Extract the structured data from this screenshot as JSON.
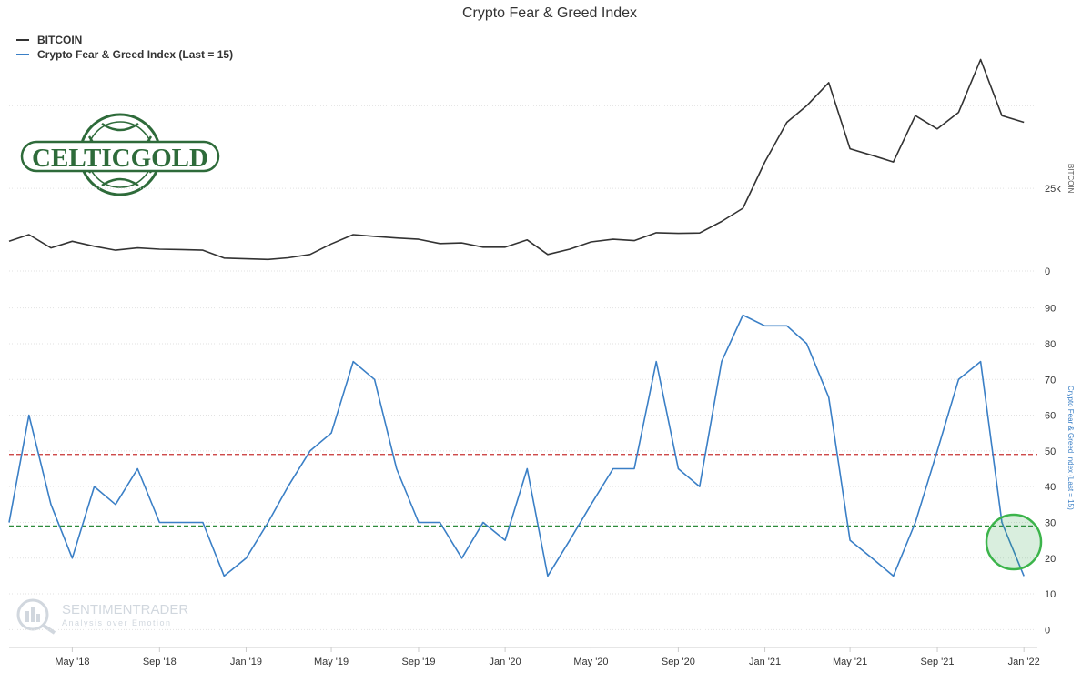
{
  "title": "Crypto Fear & Greed Index",
  "legend": [
    {
      "label": "BITCOIN",
      "color": "#333333"
    },
    {
      "label": "Crypto Fear & Greed Index (Last = 15)",
      "color": "#3a7fc6"
    }
  ],
  "logo": {
    "text": "CELTICGOLD"
  },
  "watermark": {
    "name": "SENTIMENTRADER",
    "tagline": "Analysis over Emotion"
  },
  "chart_data": [
    {
      "type": "line",
      "name": "BITCOIN",
      "ylabel": "BITCOIN",
      "ylim": [
        0,
        60000
      ],
      "yticks": [
        {
          "value": 0,
          "label": "0"
        },
        {
          "value": 25000,
          "label": "25k"
        }
      ],
      "color": "#333333",
      "x": [
        "2018-02-01",
        "2018-03-01",
        "2018-04-01",
        "2018-05-01",
        "2018-06-01",
        "2018-07-01",
        "2018-08-01",
        "2018-09-01",
        "2018-10-01",
        "2018-11-01",
        "2018-12-01",
        "2019-01-01",
        "2019-02-01",
        "2019-03-01",
        "2019-04-01",
        "2019-05-01",
        "2019-06-01",
        "2019-07-01",
        "2019-08-01",
        "2019-09-01",
        "2019-10-01",
        "2019-11-01",
        "2019-12-01",
        "2020-01-01",
        "2020-02-01",
        "2020-03-01",
        "2020-04-01",
        "2020-05-01",
        "2020-06-01",
        "2020-07-01",
        "2020-08-01",
        "2020-09-01",
        "2020-10-01",
        "2020-11-01",
        "2020-12-01",
        "2021-01-01",
        "2021-02-01",
        "2021-03-01",
        "2021-04-01",
        "2021-05-01",
        "2021-06-01",
        "2021-07-01",
        "2021-08-01",
        "2021-09-01",
        "2021-10-01",
        "2021-11-01",
        "2021-12-01",
        "2022-01-01"
      ],
      "values": [
        9000,
        11000,
        7000,
        9000,
        7500,
        6300,
        7000,
        6600,
        6500,
        6300,
        3900,
        3700,
        3500,
        4000,
        5000,
        8200,
        11000,
        10500,
        10000,
        9600,
        8300,
        8500,
        7200,
        7200,
        9400,
        5000,
        6600,
        8800,
        9600,
        9200,
        11600,
        11400,
        11500,
        15000,
        19000,
        33000,
        45000,
        50000,
        57000,
        37000,
        35000,
        33000,
        47000,
        43000,
        48000,
        64000,
        47000,
        45000
      ]
    },
    {
      "type": "line",
      "name": "Crypto Fear & Greed Index (Last = 15)",
      "ylabel": "Crypto Fear & Greed Index (Last = 15)",
      "ylim": [
        -5,
        95
      ],
      "yticks": [
        0,
        10,
        20,
        30,
        40,
        50,
        60,
        70,
        80,
        90
      ],
      "color": "#3a7fc6",
      "reference_lines": [
        {
          "value": 49,
          "color": "#c83232"
        },
        {
          "value": 29,
          "color": "#2e8b3c"
        }
      ],
      "x": [
        "2018-02-01",
        "2018-03-01",
        "2018-04-01",
        "2018-05-01",
        "2018-06-01",
        "2018-07-01",
        "2018-08-01",
        "2018-09-01",
        "2018-10-01",
        "2018-11-01",
        "2018-12-01",
        "2019-01-01",
        "2019-02-01",
        "2019-03-01",
        "2019-04-01",
        "2019-05-01",
        "2019-06-01",
        "2019-07-01",
        "2019-08-01",
        "2019-09-01",
        "2019-10-01",
        "2019-11-01",
        "2019-12-01",
        "2020-01-01",
        "2020-02-01",
        "2020-03-01",
        "2020-04-01",
        "2020-05-01",
        "2020-06-01",
        "2020-07-01",
        "2020-08-01",
        "2020-09-01",
        "2020-10-01",
        "2020-11-01",
        "2020-12-01",
        "2021-01-01",
        "2021-02-01",
        "2021-03-01",
        "2021-04-01",
        "2021-05-01",
        "2021-06-01",
        "2021-07-01",
        "2021-08-01",
        "2021-09-01",
        "2021-10-01",
        "2021-11-01",
        "2021-12-01",
        "2022-01-01"
      ],
      "values": [
        30,
        60,
        35,
        20,
        40,
        35,
        45,
        30,
        30,
        30,
        15,
        20,
        30,
        40,
        50,
        55,
        75,
        70,
        45,
        30,
        30,
        20,
        30,
        25,
        45,
        15,
        25,
        35,
        45,
        45,
        75,
        45,
        40,
        75,
        88,
        85,
        85,
        80,
        65,
        25,
        20,
        15,
        30,
        50,
        70,
        75,
        30,
        15
      ]
    }
  ],
  "xticks": [
    {
      "date": "2018-05-01",
      "label": "May '18"
    },
    {
      "date": "2018-09-01",
      "label": "Sep '18"
    },
    {
      "date": "2019-01-01",
      "label": "Jan '19"
    },
    {
      "date": "2019-05-01",
      "label": "May '19"
    },
    {
      "date": "2019-09-01",
      "label": "Sep '19"
    },
    {
      "date": "2020-01-01",
      "label": "Jan '20"
    },
    {
      "date": "2020-05-01",
      "label": "May '20"
    },
    {
      "date": "2020-09-01",
      "label": "Sep '20"
    },
    {
      "date": "2021-01-01",
      "label": "Jan '21"
    },
    {
      "date": "2021-05-01",
      "label": "May '21"
    },
    {
      "date": "2021-09-01",
      "label": "Sep '21"
    },
    {
      "date": "2022-01-01",
      "label": "Jan '22"
    }
  ]
}
